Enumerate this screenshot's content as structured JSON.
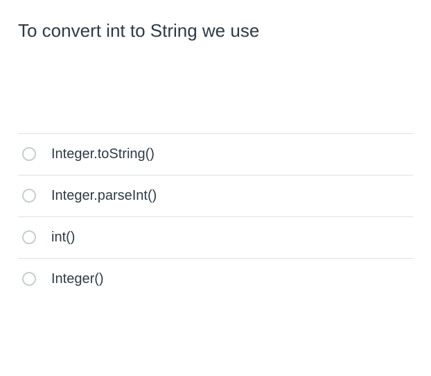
{
  "question": {
    "text": "To convert int to String we use",
    "text_color": "#2d3b45",
    "font_size": 26
  },
  "options": [
    {
      "label": "Integer.toString()",
      "selected": false
    },
    {
      "label": "Integer.parseInt()",
      "selected": false
    },
    {
      "label": "int()",
      "selected": false
    },
    {
      "label": "Integer()",
      "selected": false
    }
  ],
  "styling": {
    "background_color": "#ffffff",
    "divider_color": "#dde0e4",
    "radio_border_color": "#c7cdd1",
    "option_text_color": "#2d3b45",
    "option_font_size": 20
  }
}
